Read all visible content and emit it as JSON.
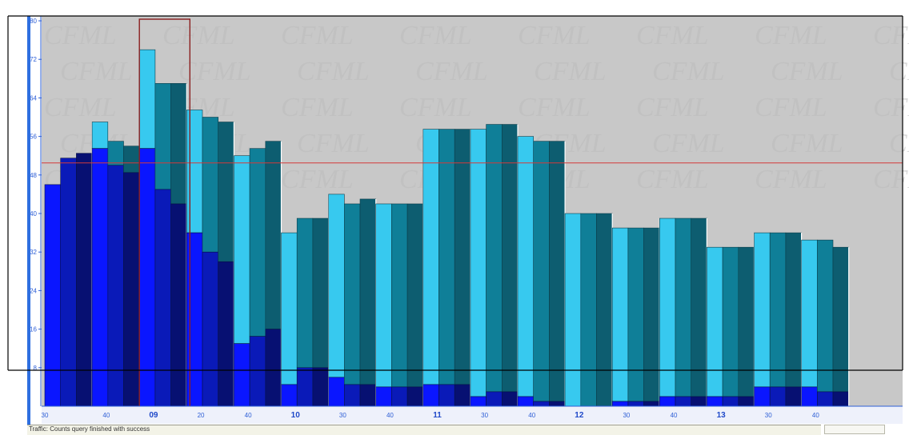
{
  "chart_data": {
    "type": "bar",
    "y_ticks": [
      "80",
      "72",
      "64",
      "56",
      "48",
      "40",
      "32",
      "24",
      "16",
      "8"
    ],
    "ylim": [
      0,
      81
    ],
    "reference_line_value": 50.5,
    "x_labels": [
      "30",
      "40",
      "09",
      "20",
      "40",
      "10",
      "30",
      "40",
      "11",
      "30",
      "40",
      "12",
      "30",
      "40",
      "13",
      "30",
      "40"
    ],
    "watermark_text": "CFML",
    "bars": [
      {
        "total": 46,
        "inner": 46
      },
      {
        "total": 51.5,
        "inner": 51.5
      },
      {
        "total": 52.5,
        "inner": 52.5
      },
      {
        "total": 59,
        "inner": 53.5
      },
      {
        "total": 55,
        "inner": 50
      },
      {
        "total": 54,
        "inner": 48.5
      },
      {
        "total": 74,
        "inner": 53.5
      },
      {
        "total": 67,
        "inner": 45
      },
      {
        "total": 67,
        "inner": 42
      },
      {
        "total": 61.5,
        "inner": 36
      },
      {
        "total": 60,
        "inner": 32
      },
      {
        "total": 59,
        "inner": 30
      },
      {
        "total": 52,
        "inner": 13
      },
      {
        "total": 53.5,
        "inner": 14.5
      },
      {
        "total": 55,
        "inner": 16
      },
      {
        "total": 36,
        "inner": 4.5
      },
      {
        "total": 39,
        "inner": 8
      },
      {
        "total": 39,
        "inner": 8
      },
      {
        "total": 44,
        "inner": 6
      },
      {
        "total": 42,
        "inner": 4.5
      },
      {
        "total": 43,
        "inner": 4.5
      },
      {
        "total": 42,
        "inner": 4
      },
      {
        "total": 42,
        "inner": 4
      },
      {
        "total": 42,
        "inner": 4
      },
      {
        "total": 57.5,
        "inner": 4.5
      },
      {
        "total": 57.5,
        "inner": 4.5
      },
      {
        "total": 57.5,
        "inner": 4.5
      },
      {
        "total": 57.5,
        "inner": 2
      },
      {
        "total": 58.5,
        "inner": 3
      },
      {
        "total": 58.5,
        "inner": 3
      },
      {
        "total": 56,
        "inner": 2
      },
      {
        "total": 55,
        "inner": 1
      },
      {
        "total": 55,
        "inner": 1
      },
      {
        "total": 40,
        "inner": 0
      },
      {
        "total": 40,
        "inner": 0
      },
      {
        "total": 40,
        "inner": 0
      },
      {
        "total": 37,
        "inner": 1
      },
      {
        "total": 37,
        "inner": 1
      },
      {
        "total": 37,
        "inner": 1
      },
      {
        "total": 39,
        "inner": 2
      },
      {
        "total": 39,
        "inner": 2
      },
      {
        "total": 39,
        "inner": 2
      },
      {
        "total": 33,
        "inner": 2
      },
      {
        "total": 33,
        "inner": 2
      },
      {
        "total": 33,
        "inner": 2
      },
      {
        "total": 36,
        "inner": 4
      },
      {
        "total": 36,
        "inner": 4
      },
      {
        "total": 36,
        "inner": 4
      },
      {
        "total": 34.5,
        "inner": 4
      },
      {
        "total": 34.5,
        "inner": 3
      },
      {
        "total": 33,
        "inner": 3
      }
    ],
    "selected_hour_label": "09",
    "colors": {
      "background": "#c8c8c8",
      "reference_line": "#d43a3a",
      "selection_box": "#8b1f1f",
      "axis": "#2e5fd6"
    }
  },
  "status": {
    "message": "Traffic: Counts query finished with success"
  }
}
